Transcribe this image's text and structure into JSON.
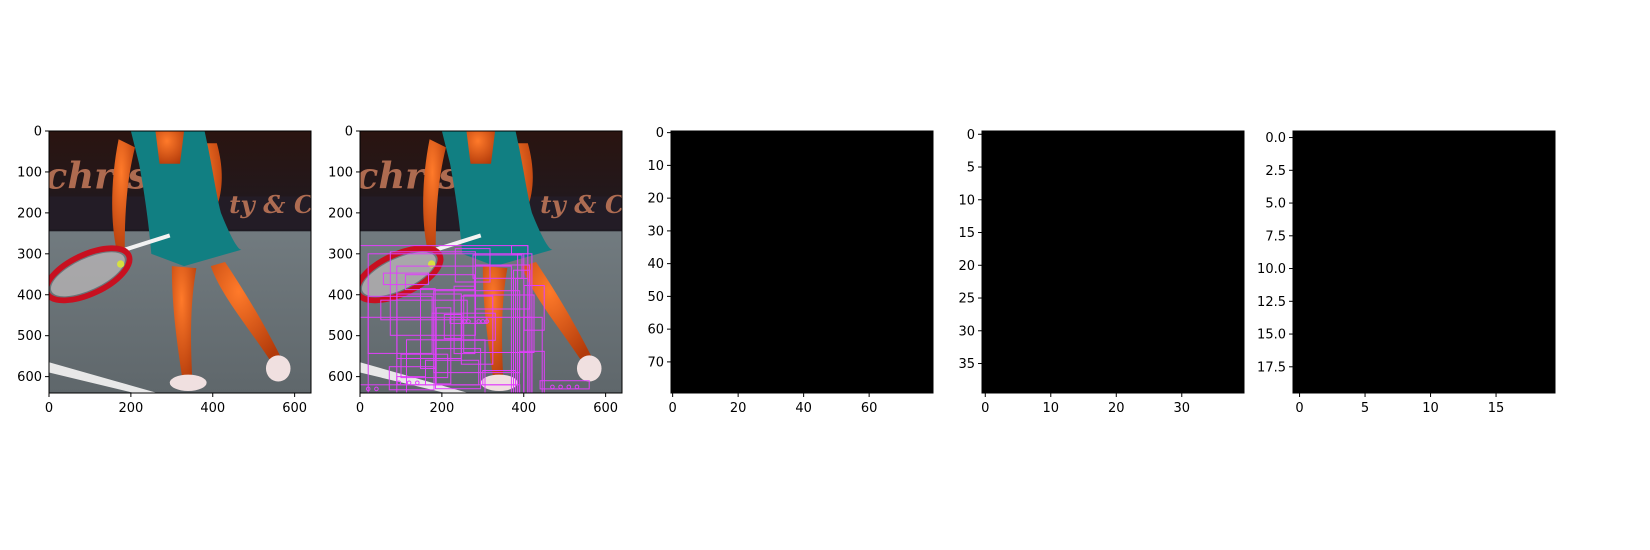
{
  "chart_data": [
    {
      "type": "heatmap",
      "content": "photo",
      "xlim": [
        0,
        640
      ],
      "ylim": [
        640,
        0
      ],
      "xticks": [
        "0",
        "200",
        "400",
        "600"
      ],
      "yticks": [
        "0",
        "100",
        "200",
        "300",
        "400",
        "500",
        "600"
      ],
      "xtick_values": [
        0,
        200,
        400,
        600
      ],
      "ytick_values": [
        0,
        100,
        200,
        300,
        400,
        500,
        600
      ]
    },
    {
      "type": "heatmap",
      "content": "photo-with-boxes",
      "box_color": "#e040fb",
      "xlim": [
        0,
        640
      ],
      "ylim": [
        640,
        0
      ],
      "xticks": [
        "0",
        "200",
        "400",
        "600"
      ],
      "yticks": [
        "0",
        "100",
        "200",
        "300",
        "400",
        "500",
        "600"
      ],
      "xtick_values": [
        0,
        200,
        400,
        600
      ],
      "ytick_values": [
        0,
        100,
        200,
        300,
        400,
        500,
        600
      ]
    },
    {
      "type": "heatmap",
      "content": "black",
      "xlim": [
        -0.5,
        79.5
      ],
      "ylim": [
        79.5,
        -0.5
      ],
      "xticks": [
        "0",
        "20",
        "40",
        "60"
      ],
      "yticks": [
        "0",
        "10",
        "20",
        "30",
        "40",
        "50",
        "60",
        "70"
      ],
      "xtick_values": [
        0,
        20,
        40,
        60
      ],
      "ytick_values": [
        0,
        10,
        20,
        30,
        40,
        50,
        60,
        70
      ]
    },
    {
      "type": "heatmap",
      "content": "black",
      "xlim": [
        -0.5,
        39.5
      ],
      "ylim": [
        39.5,
        -0.5
      ],
      "xticks": [
        "0",
        "10",
        "20",
        "30"
      ],
      "yticks": [
        "0",
        "5",
        "10",
        "15",
        "20",
        "25",
        "30",
        "35"
      ],
      "xtick_values": [
        0,
        10,
        20,
        30
      ],
      "ytick_values": [
        0,
        5,
        10,
        15,
        20,
        25,
        30,
        35
      ]
    },
    {
      "type": "heatmap",
      "content": "black",
      "xlim": [
        -0.5,
        19.5
      ],
      "ylim": [
        19.5,
        -0.5
      ],
      "xticks": [
        "0",
        "5",
        "10",
        "15"
      ],
      "yticks": [
        "0.0",
        "2.5",
        "5.0",
        "7.5",
        "10.0",
        "12.5",
        "15.0",
        "17.5"
      ],
      "xtick_values": [
        0,
        5,
        10,
        15
      ],
      "ytick_values": [
        0,
        2.5,
        5,
        7.5,
        10,
        12.5,
        15,
        17.5
      ]
    }
  ]
}
